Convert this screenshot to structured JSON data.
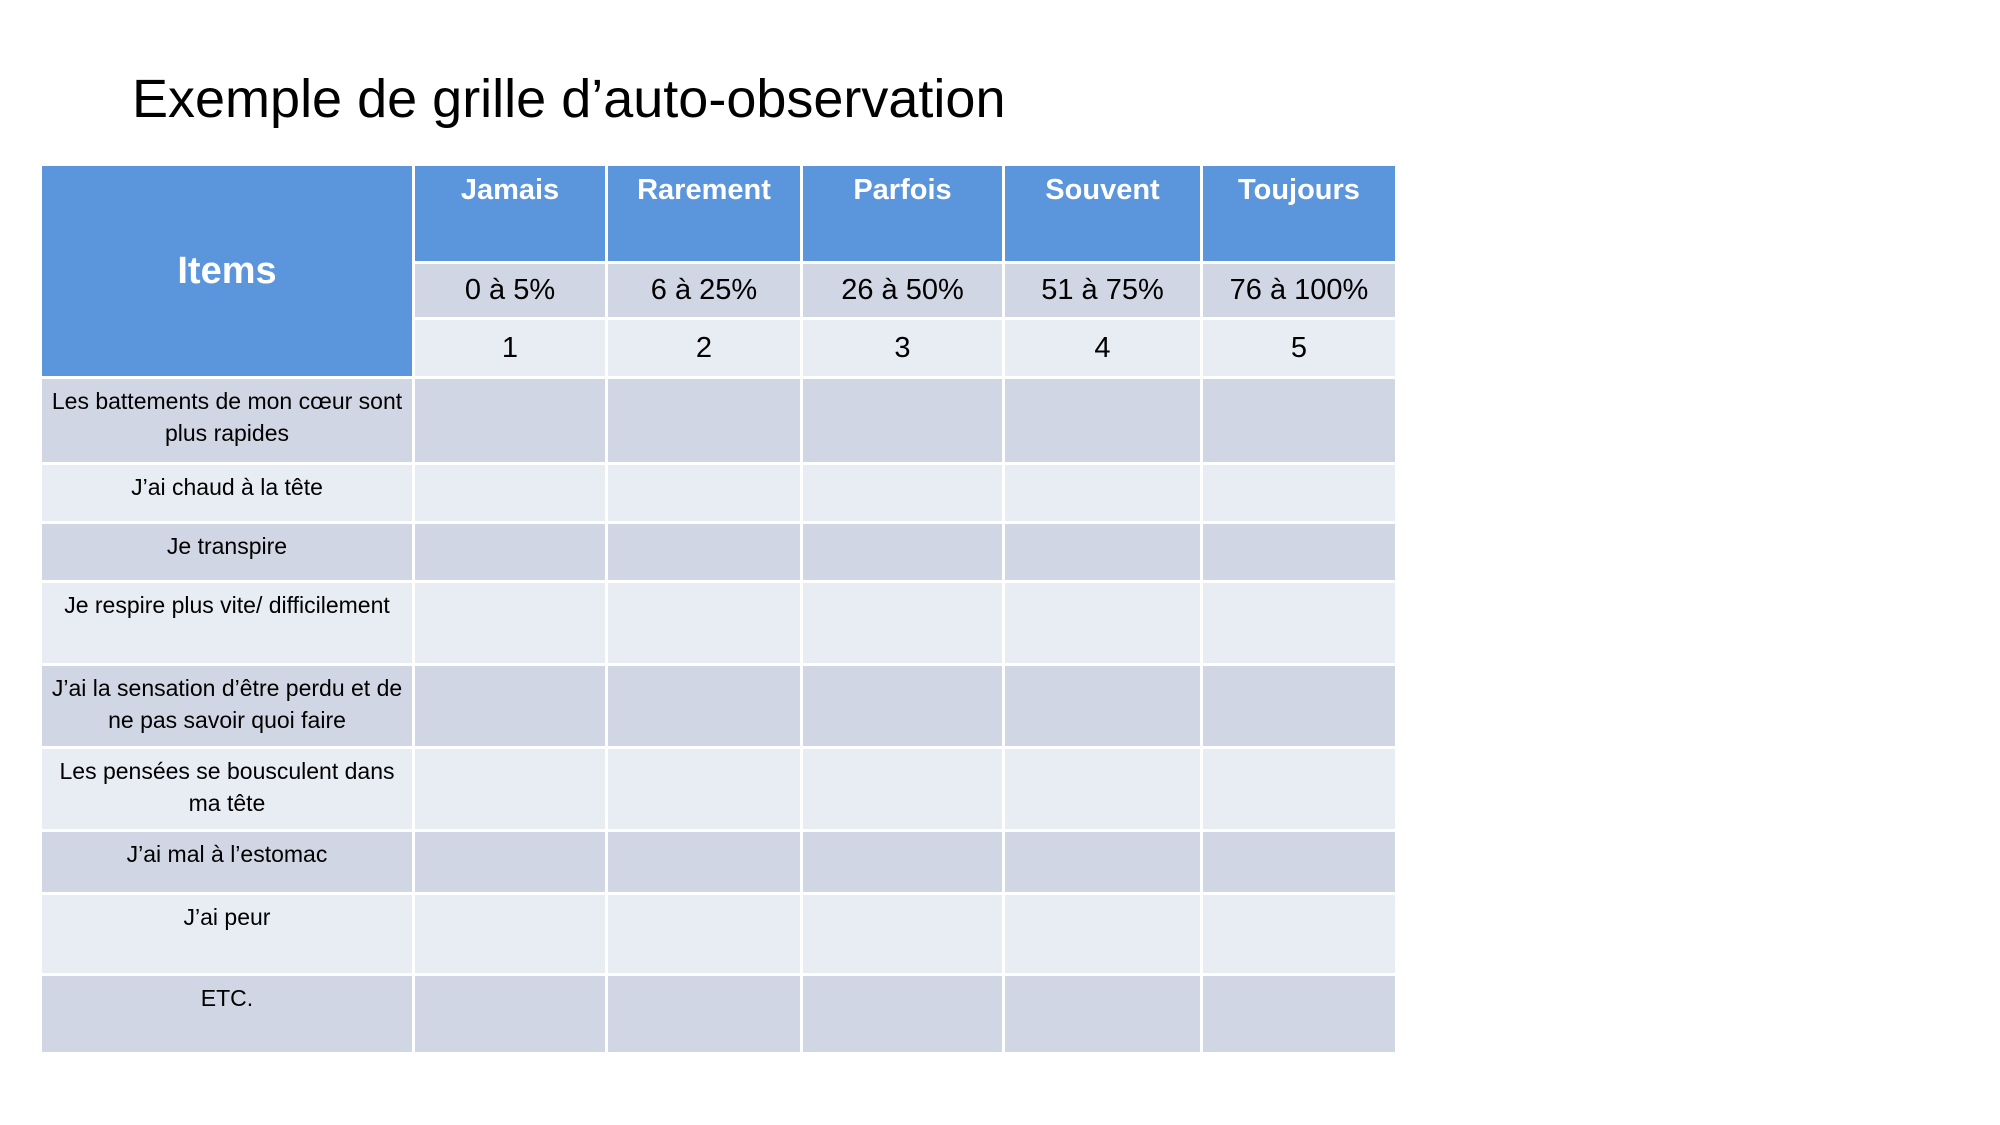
{
  "title": "Exemple de grille d’auto-observation",
  "table": {
    "items_header": "Items",
    "frequency_columns": [
      {
        "label": "Jamais",
        "range": "0 à 5%",
        "score": "1"
      },
      {
        "label": "Rarement",
        "range": "6 à 25%",
        "score": "2"
      },
      {
        "label": "Parfois",
        "range": "26 à 50%",
        "score": "3"
      },
      {
        "label": "Souvent",
        "range": "51 à 75%",
        "score": "4"
      },
      {
        "label": "Toujours",
        "range": "76 à 100%",
        "score": "5"
      }
    ],
    "items": [
      "Les battements de mon cœur sont plus rapides",
      "J’ai chaud à la tête",
      "Je transpire",
      "Je respire plus vite/ difficilement",
      "J’ai la sensation d’être perdu et de ne pas savoir quoi faire",
      "Les pensées se bousculent dans ma tête",
      "J’ai mal à l’estomac",
      "J’ai peur",
      "ETC."
    ]
  },
  "colors": {
    "header_blue": "#5b95dc",
    "row_dark": "#d0d6e3",
    "row_light": "#e8ecf3"
  }
}
